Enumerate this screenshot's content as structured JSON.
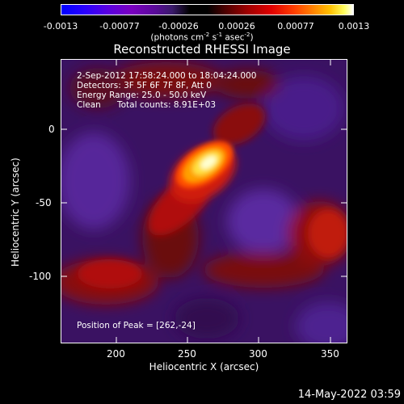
{
  "colorbar": {
    "tick_labels": [
      "-0.0013",
      "-0.00077",
      "-0.00026",
      "0.00026",
      "0.00077",
      "0.0013"
    ],
    "units_prefix": "(photons cm",
    "units_exp1": "-2",
    "units_mid": " s",
    "units_exp2": "-1",
    "units_mid2": " asec",
    "units_exp3": "-2",
    "units_suffix": ")"
  },
  "title": "Reconstructed RHESSI Image",
  "annotations": {
    "time_range": "2-Sep-2012 17:58:24.000 to 18:04:24.000",
    "detectors": "Detectors: 3F 5F 6F 7F 8F, Att 0",
    "energy": "Energy Range: 25.0 - 50.0 keV",
    "clean_label": "Clean",
    "total_counts": "Total counts: 8.91E+03",
    "peak": "Position of Peak = [262,-24]"
  },
  "axes": {
    "xlabel": "Heliocentric X (arcsec)",
    "ylabel": "Heliocentric Y (arcsec)",
    "x_ticks": [
      "200",
      "250",
      "300",
      "350"
    ],
    "y_ticks": [
      "0",
      "-50",
      "-100"
    ],
    "x_range": [
      162,
      360
    ],
    "y_range": [
      -145,
      24
    ]
  },
  "timestamp": "14-May-2022 03:59"
}
